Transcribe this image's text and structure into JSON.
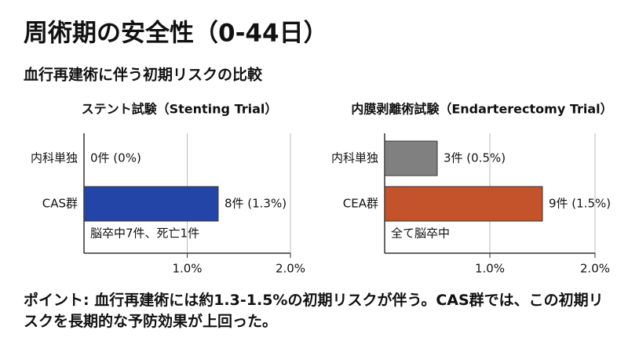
{
  "title": "周術期の安全性（0-44日）",
  "subtitle": "血行再建術に伴う初期リスクの比較",
  "chart_data": [
    {
      "type": "bar",
      "orientation": "horizontal",
      "title": "ステント試験（Stenting Trial）",
      "categories": [
        "内科単独",
        "CAS群"
      ],
      "values": [
        0,
        1.3
      ],
      "value_labels": [
        "0件 (0%)",
        "8件 (1.3%)"
      ],
      "colors": [
        "#808080",
        "#2445a8"
      ],
      "annotation": "脳卒中7件、死亡1件",
      "xlim": [
        0,
        2
      ],
      "xticks": [
        {
          "value": 1,
          "label": "1.0%"
        },
        {
          "value": 2,
          "label": "2.0%"
        }
      ],
      "grid": true
    },
    {
      "type": "bar",
      "orientation": "horizontal",
      "title": "内膜剥離術試験（Endarterectomy Trial）",
      "categories": [
        "内科単独",
        "CEA群"
      ],
      "values": [
        0.5,
        1.5
      ],
      "value_labels": [
        "3件 (0.5%)",
        "9件 (1.5%)"
      ],
      "colors": [
        "#808080",
        "#c4522a"
      ],
      "annotation": "全て脳卒中",
      "xlim": [
        0,
        2
      ],
      "xticks": [
        {
          "value": 1,
          "label": "1.0%"
        },
        {
          "value": 2,
          "label": "2.0%"
        }
      ],
      "grid": true
    }
  ],
  "note": "ポイント: 血行再建術には約1.3-1.5%の初期リスクが伴う。CAS群では、この初期リスクを長期的な予防効果が上回った。"
}
